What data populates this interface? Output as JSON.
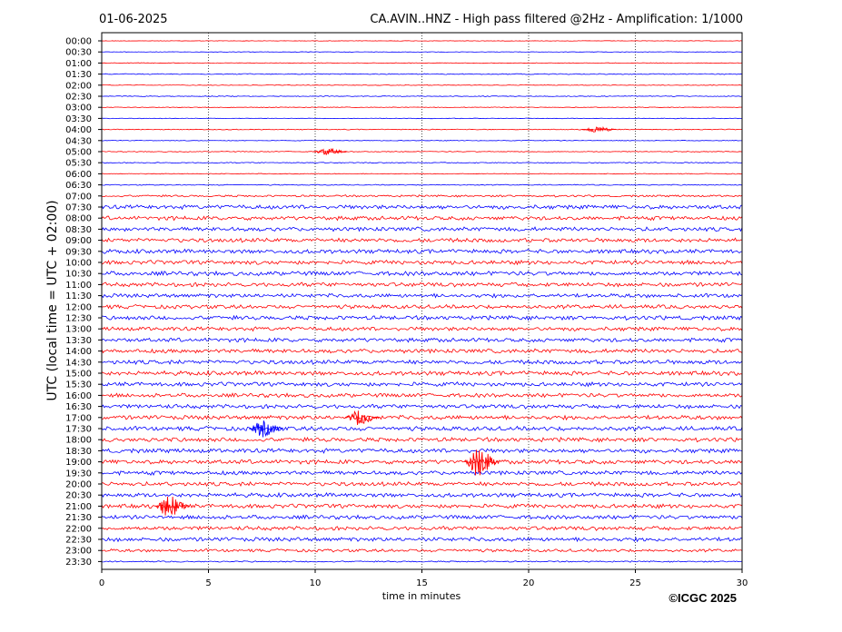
{
  "header": {
    "date": "01-06-2025",
    "title": "CA.AVIN..HNZ - High pass filtered @2Hz - Amplification: 1/1000"
  },
  "footer": {
    "copyright": "©ICGC 2025"
  },
  "chart_data": {
    "type": "line",
    "title": "CA.AVIN..HNZ - High pass filtered @2Hz - Amplification: 1/1000",
    "xlabel": "time in minutes",
    "ylabel": "UTC (local time = UTC + 02:00)",
    "xlim": [
      0,
      30
    ],
    "x_ticks": [
      "0",
      "5",
      "10",
      "15",
      "20",
      "25",
      "30"
    ],
    "grid": "vertical dotted lines at every 5 minutes",
    "colors": {
      "odd_row": "#ff0000",
      "even_row": "#0000ff"
    },
    "rows": [
      {
        "label": "00:00",
        "amplitude": 0.3
      },
      {
        "label": "00:30",
        "amplitude": 0.3
      },
      {
        "label": "01:00",
        "amplitude": 0.4
      },
      {
        "label": "01:30",
        "amplitude": 0.6
      },
      {
        "label": "02:00",
        "amplitude": 0.4
      },
      {
        "label": "02:30",
        "amplitude": 0.5
      },
      {
        "label": "03:00",
        "amplitude": 0.4
      },
      {
        "label": "03:30",
        "amplitude": 0.4
      },
      {
        "label": "04:00",
        "amplitude": 0.5
      },
      {
        "label": "04:30",
        "amplitude": 0.4
      },
      {
        "label": "05:00",
        "amplitude": 0.5
      },
      {
        "label": "05:30",
        "amplitude": 0.6
      },
      {
        "label": "06:00",
        "amplitude": 0.5
      },
      {
        "label": "06:30",
        "amplitude": 0.6
      },
      {
        "label": "07:00",
        "amplitude": 1.2
      },
      {
        "label": "07:30",
        "amplitude": 2.5
      },
      {
        "label": "08:00",
        "amplitude": 2.4
      },
      {
        "label": "08:30",
        "amplitude": 2.5
      },
      {
        "label": "09:00",
        "amplitude": 2.5
      },
      {
        "label": "09:30",
        "amplitude": 2.5
      },
      {
        "label": "10:00",
        "amplitude": 2.5
      },
      {
        "label": "10:30",
        "amplitude": 2.6
      },
      {
        "label": "11:00",
        "amplitude": 2.5
      },
      {
        "label": "11:30",
        "amplitude": 2.4
      },
      {
        "label": "12:00",
        "amplitude": 2.4
      },
      {
        "label": "12:30",
        "amplitude": 2.5
      },
      {
        "label": "13:00",
        "amplitude": 2.4
      },
      {
        "label": "13:30",
        "amplitude": 2.4
      },
      {
        "label": "14:00",
        "amplitude": 2.5
      },
      {
        "label": "14:30",
        "amplitude": 2.6
      },
      {
        "label": "15:00",
        "amplitude": 2.6
      },
      {
        "label": "15:30",
        "amplitude": 2.5
      },
      {
        "label": "16:00",
        "amplitude": 2.4
      },
      {
        "label": "16:30",
        "amplitude": 2.5
      },
      {
        "label": "17:00",
        "amplitude": 2.6
      },
      {
        "label": "17:30",
        "amplitude": 2.6
      },
      {
        "label": "18:00",
        "amplitude": 2.5
      },
      {
        "label": "18:30",
        "amplitude": 2.6
      },
      {
        "label": "19:00",
        "amplitude": 2.6
      },
      {
        "label": "19:30",
        "amplitude": 2.5
      },
      {
        "label": "20:00",
        "amplitude": 2.5
      },
      {
        "label": "20:30",
        "amplitude": 2.5
      },
      {
        "label": "21:00",
        "amplitude": 2.5
      },
      {
        "label": "21:30",
        "amplitude": 2.4
      },
      {
        "label": "22:00",
        "amplitude": 2.4
      },
      {
        "label": "22:30",
        "amplitude": 2.5
      },
      {
        "label": "23:00",
        "amplitude": 1.8
      },
      {
        "label": "23:30",
        "amplitude": 0.8
      }
    ],
    "events": [
      {
        "row": "04:00",
        "minute": 23.1,
        "amplitude": 4
      },
      {
        "row": "05:00",
        "minute": 10.5,
        "amplitude": 4
      },
      {
        "row": "17:00",
        "minute": 12.0,
        "amplitude": 9
      },
      {
        "row": "17:30",
        "minute": 7.5,
        "amplitude": 10
      },
      {
        "row": "19:00",
        "minute": 17.6,
        "amplitude": 18
      },
      {
        "row": "21:00",
        "minute": 3.1,
        "amplitude": 14
      }
    ]
  }
}
